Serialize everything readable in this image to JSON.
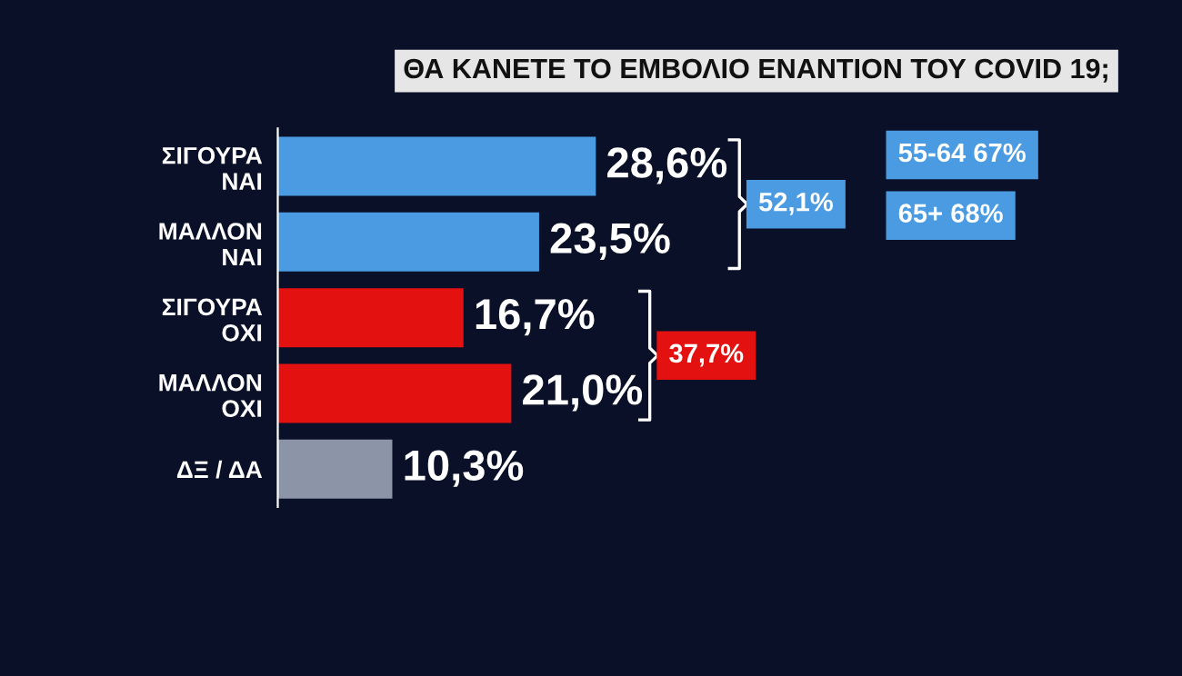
{
  "chart_data": {
    "type": "bar",
    "orientation": "horizontal",
    "title": "ΘΑ ΚΑΝΕΤΕ ΤΟ ΕΜΒΟΛΙΟ ΕΝΑΝΤΙΟΝ ΤΟΥ COVID 19;",
    "categories": [
      "ΣΙΓΟΥΡΑ\nΝΑΙ",
      "ΜΑΛΛΟΝ\nΝΑΙ",
      "ΣΙΓΟΥΡΑ\nΟΧΙ",
      "ΜΑΛΛΟΝ\nΟΧΙ",
      "ΔΞ / ΔΑ"
    ],
    "values": [
      28.6,
      23.5,
      16.7,
      21.0,
      10.3
    ],
    "value_labels": [
      "28,6%",
      "23,5%",
      "16,7%",
      "21,0%",
      "10,3%"
    ],
    "colors": [
      "#4b9be3",
      "#4b9be3",
      "#e3110f",
      "#e3110f",
      "#8c95a8"
    ],
    "tick_labels": "y",
    "grid": false,
    "legend": false,
    "annotations": [
      "52,1%",
      "37,7%",
      "55-64 67%",
      "65+ 68%"
    ]
  }
}
